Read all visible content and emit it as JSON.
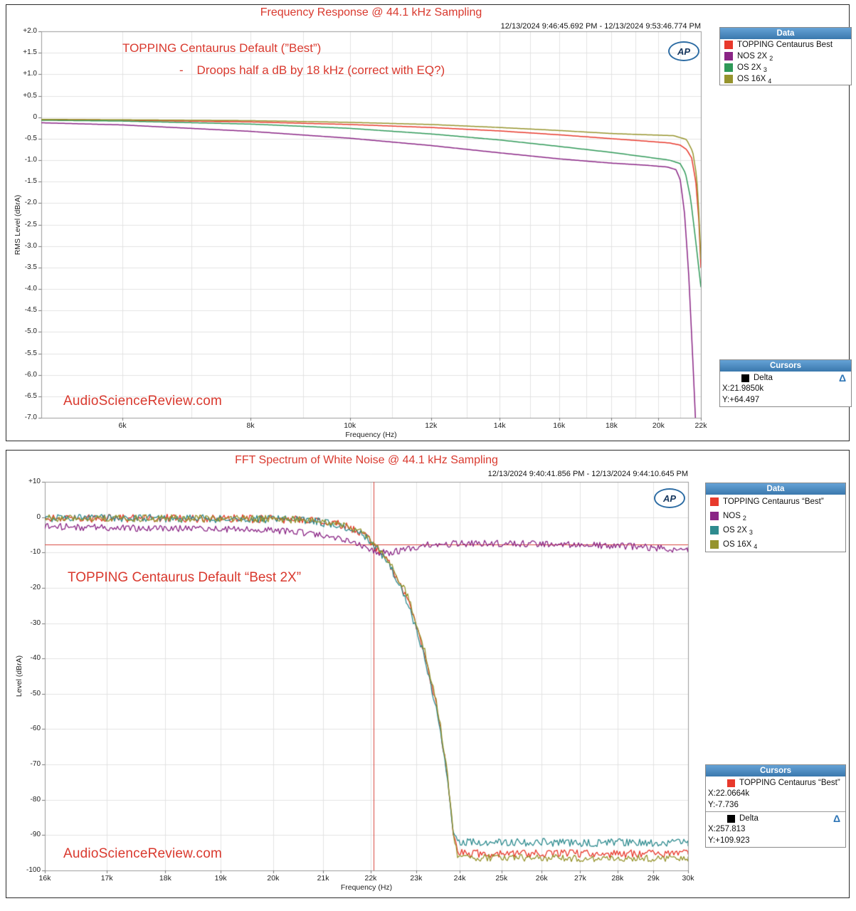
{
  "watermark": "AudioScienceReview.com",
  "ap_logo": "AP",
  "colors": {
    "accent_red": "#d9392e",
    "cursor_line": "#d8453c",
    "header_blue_top": "#65a2d6",
    "header_blue_bottom": "#3a78ad",
    "delta_blue": "#2e75b6",
    "grid": "#e3e3e3",
    "frame": "#9b9b9b",
    "text": "#1a1a1a"
  },
  "chart_data": [
    {
      "type": "line",
      "title": "Frequency Response @ 44.1 kHz Sampling",
      "timestamp": "12/13/2024 9:46:45.692 PM - 12/13/2024 9:53:46.774 PM",
      "xlabel": "Frequency (Hz)",
      "ylabel": "RMS Level (dBrA)",
      "x_scale": "log",
      "xlim": [
        5000,
        22000
      ],
      "ylim": [
        -7,
        2
      ],
      "x_grid_step": 1000,
      "y_tick_step": 0.5,
      "y_decimals": 1,
      "x_ticks": [
        {
          "hz": 6000,
          "label": "6k"
        },
        {
          "hz": 8000,
          "label": "8k"
        },
        {
          "hz": 10000,
          "label": "10k"
        },
        {
          "hz": 12000,
          "label": "12k"
        },
        {
          "hz": 14000,
          "label": "14k"
        },
        {
          "hz": 16000,
          "label": "16k"
        },
        {
          "hz": 18000,
          "label": "18k"
        },
        {
          "hz": 20000,
          "label": "20k"
        },
        {
          "hz": 22000,
          "label": "22k"
        }
      ],
      "annotations": [
        "TOPPING Centaurus Default (”Best”)",
        "-    Droops half a dB by 18 kHz (correct with EQ?)"
      ],
      "legend": {
        "title": "Data",
        "items": [
          {
            "color": "#e8392c",
            "label": "TOPPING Centaurus Best",
            "sub": ""
          },
          {
            "color": "#8a2585",
            "label": "NOS 2X",
            "sub": "2"
          },
          {
            "color": "#2f9958",
            "label": "OS 2X",
            "sub": "3"
          },
          {
            "color": "#96942d",
            "label": "OS 16X",
            "sub": "4"
          }
        ]
      },
      "cursors": {
        "title": "Cursors",
        "groups": [
          {
            "swatch": "#000000",
            "name": "Delta",
            "delta": true,
            "x": "X:21.9850k",
            "y": "Y:+64.497"
          }
        ]
      },
      "series": [
        {
          "name": "TOPPING Centaurus Best",
          "color": "#e8392c",
          "points": [
            [
              5000,
              -0.06
            ],
            [
              6000,
              -0.07
            ],
            [
              8000,
              -0.11
            ],
            [
              10000,
              -0.17
            ],
            [
              12000,
              -0.24
            ],
            [
              14000,
              -0.32
            ],
            [
              16000,
              -0.41
            ],
            [
              18000,
              -0.5
            ],
            [
              19500,
              -0.56
            ],
            [
              20500,
              -0.6
            ],
            [
              21000,
              -0.65
            ],
            [
              21300,
              -0.75
            ],
            [
              21550,
              -0.95
            ],
            [
              21750,
              -1.5
            ],
            [
              21900,
              -2.4
            ],
            [
              22000,
              -3.5
            ]
          ]
        },
        {
          "name": "NOS 2X",
          "color": "#8a2585",
          "points": [
            [
              5000,
              -0.13
            ],
            [
              6000,
              -0.18
            ],
            [
              8000,
              -0.33
            ],
            [
              10000,
              -0.49
            ],
            [
              12000,
              -0.66
            ],
            [
              14000,
              -0.83
            ],
            [
              16000,
              -0.97
            ],
            [
              18000,
              -1.07
            ],
            [
              19500,
              -1.12
            ],
            [
              20400,
              -1.16
            ],
            [
              20800,
              -1.22
            ],
            [
              21000,
              -1.45
            ],
            [
              21200,
              -2.2
            ],
            [
              21400,
              -3.6
            ],
            [
              21600,
              -5.6
            ],
            [
              21750,
              -7.2
            ]
          ]
        },
        {
          "name": "OS 2X",
          "color": "#2f9958",
          "points": [
            [
              5000,
              -0.07
            ],
            [
              6000,
              -0.09
            ],
            [
              8000,
              -0.16
            ],
            [
              10000,
              -0.26
            ],
            [
              12000,
              -0.39
            ],
            [
              14000,
              -0.53
            ],
            [
              16000,
              -0.68
            ],
            [
              18000,
              -0.82
            ],
            [
              19500,
              -0.93
            ],
            [
              20500,
              -1.0
            ],
            [
              21000,
              -1.08
            ],
            [
              21250,
              -1.3
            ],
            [
              21500,
              -1.9
            ],
            [
              21750,
              -2.9
            ],
            [
              22000,
              -3.95
            ]
          ]
        },
        {
          "name": "OS 16X",
          "color": "#96942d",
          "points": [
            [
              5000,
              -0.05
            ],
            [
              6000,
              -0.06
            ],
            [
              8000,
              -0.08
            ],
            [
              10000,
              -0.12
            ],
            [
              12000,
              -0.17
            ],
            [
              14000,
              -0.24
            ],
            [
              16000,
              -0.31
            ],
            [
              18000,
              -0.38
            ],
            [
              19500,
              -0.41
            ],
            [
              20700,
              -0.43
            ],
            [
              21300,
              -0.52
            ],
            [
              21600,
              -0.8
            ],
            [
              21800,
              -1.4
            ],
            [
              21920,
              -2.4
            ],
            [
              22000,
              -3.3
            ]
          ]
        }
      ]
    },
    {
      "type": "line",
      "title": "FFT Spectrum of White Noise @ 44.1 kHz Sampling",
      "timestamp": "12/13/2024 9:40:41.856 PM - 12/13/2024 9:44:10.645 PM",
      "xlabel": "Frequency (Hz)",
      "ylabel": "Level (dBrA)",
      "x_scale": "log",
      "xlim": [
        16000,
        30000
      ],
      "ylim": [
        -100,
        10
      ],
      "x_grid_step": 1000,
      "y_tick_step": 10,
      "y_decimals": 0,
      "x_ticks": [
        {
          "hz": 16000,
          "label": "16k"
        },
        {
          "hz": 17000,
          "label": "17k"
        },
        {
          "hz": 18000,
          "label": "18k"
        },
        {
          "hz": 19000,
          "label": "19k"
        },
        {
          "hz": 20000,
          "label": "20k"
        },
        {
          "hz": 21000,
          "label": "21k"
        },
        {
          "hz": 22000,
          "label": "22k"
        },
        {
          "hz": 23000,
          "label": "23k"
        },
        {
          "hz": 24000,
          "label": "24k"
        },
        {
          "hz": 25000,
          "label": "25k"
        },
        {
          "hz": 26000,
          "label": "26k"
        },
        {
          "hz": 27000,
          "label": "27k"
        },
        {
          "hz": 28000,
          "label": "28k"
        },
        {
          "hz": 29000,
          "label": "29k"
        },
        {
          "hz": 30000,
          "label": "30k"
        }
      ],
      "annotations": [
        "TOPPING Centaurus Default “Best 2X”"
      ],
      "cursor_lines": {
        "x_hz": 22066.4,
        "y_db": -7.736
      },
      "legend": {
        "title": "Data",
        "items": [
          {
            "color": "#e8392c",
            "label": "TOPPING Centaurus “Best”",
            "sub": ""
          },
          {
            "color": "#8a2585",
            "label": "NOS",
            "sub": "2"
          },
          {
            "color": "#2e8b8f",
            "label": "OS 2X",
            "sub": "3"
          },
          {
            "color": "#96942d",
            "label": "OS 16X",
            "sub": "4"
          }
        ]
      },
      "cursors": {
        "title": "Cursors",
        "groups": [
          {
            "swatch": "#e8392c",
            "name": "TOPPING Centaurus “Best”",
            "delta": false,
            "x": "X:22.0664k",
            "y": "Y:-7.736"
          },
          {
            "swatch": "#000000",
            "name": "Delta",
            "delta": true,
            "x": "X:257.813",
            "y": "Y:+109.923"
          }
        ]
      },
      "series": [
        {
          "name": "TOPPING Centaurus “Best”",
          "color": "#e8392c",
          "noise": 1.15,
          "seed": 11,
          "points": [
            [
              16000,
              -0.35
            ],
            [
              18000,
              -0.3
            ],
            [
              20000,
              -0.5
            ],
            [
              20800,
              -1.0
            ],
            [
              21400,
              -2.2
            ],
            [
              21800,
              -4.2
            ],
            [
              22066,
              -7.74
            ],
            [
              22400,
              -13
            ],
            [
              22800,
              -23
            ],
            [
              23200,
              -39
            ],
            [
              23500,
              -56
            ],
            [
              23700,
              -72
            ],
            [
              23850,
              -89
            ],
            [
              23950,
              -95
            ],
            [
              24500,
              -95.3
            ],
            [
              30000,
              -95.3
            ]
          ]
        },
        {
          "name": "NOS",
          "color": "#8a2585",
          "noise": 0.95,
          "seed": 44,
          "points": [
            [
              16000,
              -2.6
            ],
            [
              17000,
              -3.0
            ],
            [
              18000,
              -3.2
            ],
            [
              19000,
              -3.3
            ],
            [
              20000,
              -3.7
            ],
            [
              20800,
              -4.6
            ],
            [
              21300,
              -5.8
            ],
            [
              21800,
              -8.2
            ],
            [
              22100,
              -9.8
            ],
            [
              22400,
              -10.2
            ],
            [
              22800,
              -8.8
            ],
            [
              23200,
              -7.9
            ],
            [
              24000,
              -7.5
            ],
            [
              25000,
              -7.4
            ],
            [
              26000,
              -7.6
            ],
            [
              27000,
              -7.8
            ],
            [
              28000,
              -8.1
            ],
            [
              29000,
              -8.6
            ],
            [
              30000,
              -9.4
            ]
          ]
        },
        {
          "name": "OS 2X",
          "color": "#2e8b8f",
          "noise": 1.15,
          "seed": 22,
          "points": [
            [
              16000,
              -0.4
            ],
            [
              18000,
              -0.35
            ],
            [
              20000,
              -0.55
            ],
            [
              20800,
              -1.1
            ],
            [
              21400,
              -2.4
            ],
            [
              21800,
              -4.4
            ],
            [
              22066,
              -7.9
            ],
            [
              22400,
              -13.5
            ],
            [
              22800,
              -24
            ],
            [
              23200,
              -40
            ],
            [
              23500,
              -57
            ],
            [
              23700,
              -73
            ],
            [
              23830,
              -88
            ],
            [
              23930,
              -91.8
            ],
            [
              24500,
              -92
            ],
            [
              30000,
              -92.2
            ]
          ]
        },
        {
          "name": "OS 16X",
          "color": "#96942d",
          "noise": 1.0,
          "seed": 33,
          "points": [
            [
              16000,
              -0.3
            ],
            [
              18000,
              -0.28
            ],
            [
              20000,
              -0.48
            ],
            [
              20800,
              -0.95
            ],
            [
              21400,
              -2.1
            ],
            [
              21800,
              -4.0
            ],
            [
              22066,
              -7.6
            ],
            [
              22400,
              -12.5
            ],
            [
              22800,
              -22
            ],
            [
              23200,
              -38
            ],
            [
              23500,
              -55
            ],
            [
              23700,
              -71
            ],
            [
              23860,
              -90
            ],
            [
              23960,
              -96.2
            ],
            [
              24500,
              -96.4
            ],
            [
              30000,
              -96.6
            ]
          ]
        }
      ]
    }
  ]
}
